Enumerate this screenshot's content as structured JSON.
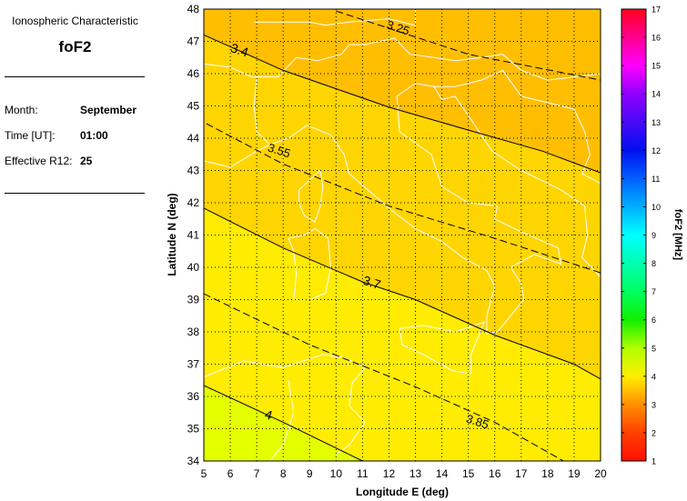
{
  "panel": {
    "title": "Ionospheric Characteristic",
    "characteristic": "foF2",
    "month_label": "Month:",
    "month_value": "September",
    "time_label": "Time [UT]:",
    "time_value": "01:00",
    "r12_label": "Effective R12:",
    "r12_value": "25"
  },
  "chart_data": {
    "type": "heatmap",
    "xlabel": "Longitude E (deg)",
    "ylabel": "Latitude N (deg)",
    "xlim": [
      5,
      20
    ],
    "ylim": [
      34,
      48
    ],
    "xticks": [
      "5",
      "6",
      "7",
      "8",
      "9",
      "10",
      "11",
      "12",
      "13",
      "14",
      "15",
      "16",
      "17",
      "18",
      "19",
      "20"
    ],
    "yticks": [
      "34",
      "35",
      "36",
      "37",
      "38",
      "39",
      "40",
      "41",
      "42",
      "43",
      "44",
      "45",
      "46",
      "47",
      "48"
    ],
    "grid": true,
    "colorbar": {
      "label": "foF2 [MHz]",
      "range": [
        1,
        17
      ],
      "ticks": [
        "1",
        "2",
        "3",
        "4",
        "5",
        "6",
        "7",
        "8",
        "9",
        "10",
        "11",
        "12",
        "13",
        "14",
        "15",
        "16",
        "17"
      ]
    },
    "contours": [
      {
        "level": "3.25",
        "style": "dashed",
        "points": [
          [
            10.0,
            47.94
          ],
          [
            15,
            46.6
          ],
          [
            20,
            45.8
          ]
        ]
      },
      {
        "level": "3.4",
        "style": "solid",
        "points": [
          [
            5,
            47.2
          ],
          [
            8,
            46.1
          ],
          [
            12,
            44.96
          ],
          [
            15,
            44.25
          ],
          [
            17.8,
            43.6
          ],
          [
            20,
            42.93
          ]
        ]
      },
      {
        "level": "3.55",
        "style": "dashed",
        "points": [
          [
            5.1,
            44.45
          ],
          [
            8,
            43.2
          ],
          [
            12,
            41.9
          ],
          [
            16,
            40.9
          ],
          [
            20,
            39.83
          ]
        ]
      },
      {
        "level": "3.7",
        "style": "solid",
        "points": [
          [
            5,
            41.83
          ],
          [
            8,
            40.6
          ],
          [
            11,
            39.55
          ],
          [
            13,
            39.0
          ],
          [
            16,
            37.9
          ],
          [
            19,
            37.0
          ],
          [
            20,
            36.54
          ]
        ]
      },
      {
        "level": "3.85",
        "style": "dashed",
        "points": [
          [
            5,
            39.18
          ],
          [
            9,
            37.6
          ],
          [
            13,
            36.3
          ],
          [
            16,
            35.2
          ],
          [
            18.6,
            34.0
          ]
        ]
      },
      {
        "level": "4",
        "style": "solid",
        "points": [
          [
            5,
            36.34
          ],
          [
            8,
            35.2
          ],
          [
            11,
            34.0
          ]
        ]
      }
    ],
    "colors": {
      "below_3.4": "#FFBE00",
      "3.4_3.7": "#FFD500",
      "3.7_4": "#FFEC00",
      "above_4": "#E4FF00",
      "coastline": "#FFFFFF"
    }
  }
}
